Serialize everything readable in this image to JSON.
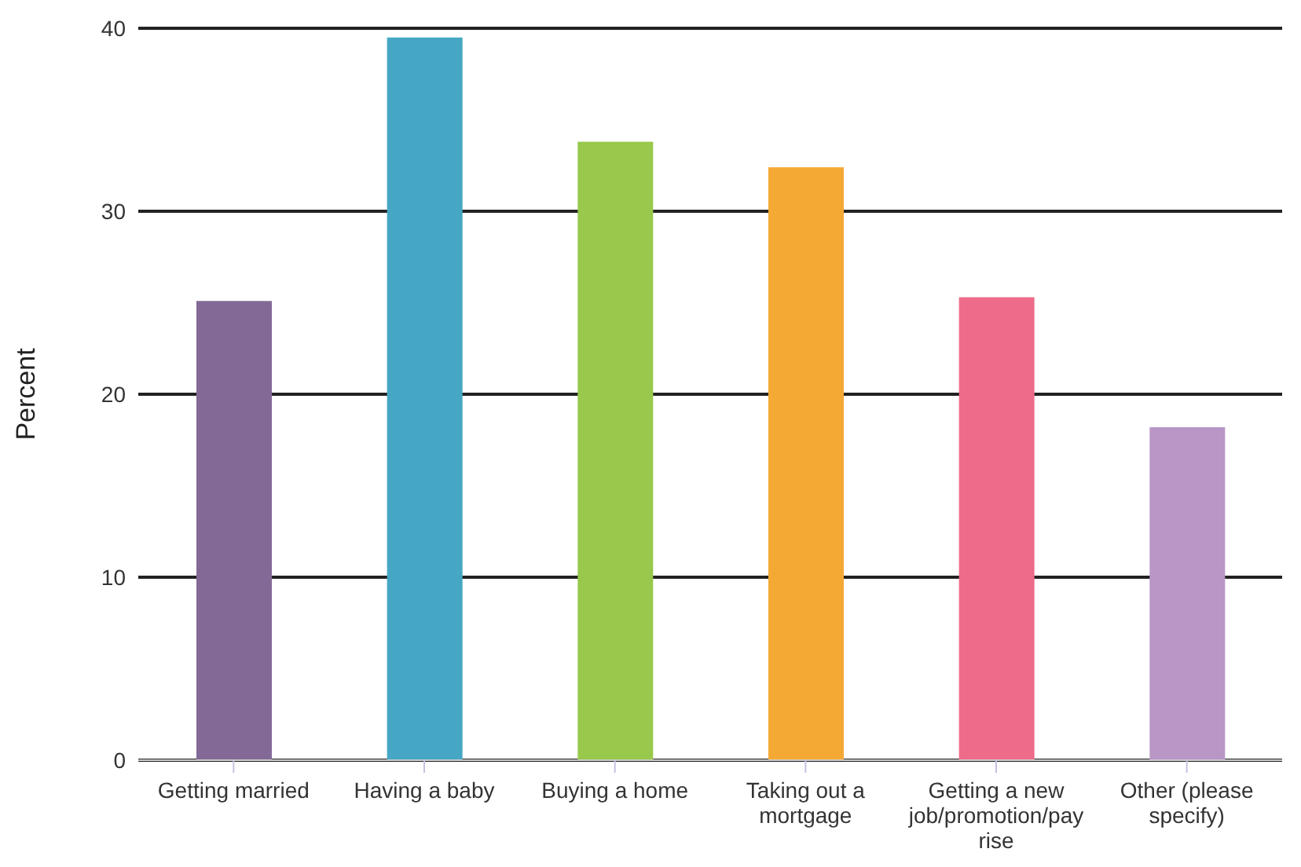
{
  "chart_data": {
    "type": "bar",
    "ylabel": "Percent",
    "categories": [
      "Getting married",
      "Having a baby",
      "Buying a home",
      "Taking out a mortgage",
      "Getting a new job/promotion/pay rise",
      "Other (please specify)"
    ],
    "values": [
      25.1,
      39.5,
      33.8,
      32.4,
      25.3,
      18.2
    ],
    "colors": [
      "#836a96",
      "#45a7c4",
      "#98c94c",
      "#f4a935",
      "#ee6b8a",
      "#b996c6"
    ],
    "ylim": [
      0,
      40
    ],
    "yticks": [
      0,
      10,
      20,
      30,
      40
    ],
    "grid": "y"
  }
}
